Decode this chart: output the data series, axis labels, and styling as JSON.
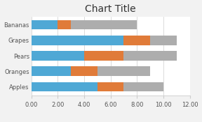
{
  "title": "Chart Title",
  "categories": [
    "Bananas",
    "Grapes",
    "Pears",
    "Oranges",
    "Apples"
  ],
  "series": {
    "John": [
      2,
      7,
      4,
      3,
      5
    ],
    "Jane": [
      1,
      2,
      3,
      2,
      2
    ],
    "Joe": [
      5,
      2,
      4,
      4,
      3
    ]
  },
  "colors": {
    "John": "#4FA8D5",
    "Jane": "#E07B39",
    "Joe": "#ADADAD"
  },
  "xlim": [
    0,
    12
  ],
  "xticks": [
    0,
    2,
    4,
    6,
    8,
    10,
    12
  ],
  "xtick_labels": [
    "0.00",
    "2.00",
    "4.00",
    "6.00",
    "8.00",
    "10.00",
    "12.00"
  ],
  "title_fontsize": 10,
  "tick_fontsize": 6,
  "legend_fontsize": 6,
  "background_color": "#F2F2F2",
  "plot_bg_color": "#FFFFFF",
  "bar_height": 0.62
}
